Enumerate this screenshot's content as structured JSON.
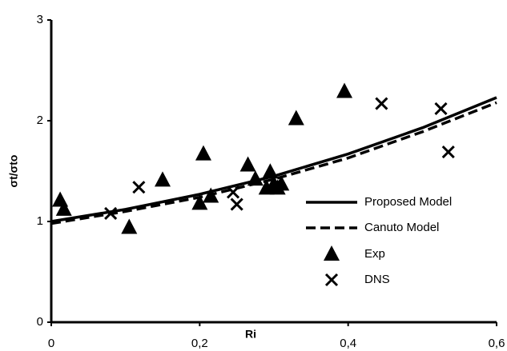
{
  "chart_data": {
    "type": "scatter",
    "x_label": "Ri",
    "y_label": "σt/σto",
    "xlim": [
      0,
      0.6
    ],
    "ylim": [
      0,
      3
    ],
    "xticks": [
      0,
      {
        "value": 0.2,
        "label": "0,2"
      },
      {
        "value": 0.4,
        "label": "0,4"
      },
      {
        "value": 0.6,
        "label": "0,6"
      }
    ],
    "yticks": [
      0,
      1,
      2,
      3
    ],
    "series": [
      {
        "name": "Proposed Model",
        "kind": "line",
        "style": "solid",
        "color": "#000000",
        "x": [
          0,
          0.1,
          0.2,
          0.3,
          0.4,
          0.5,
          0.6
        ],
        "values": [
          1.0,
          1.12,
          1.27,
          1.45,
          1.67,
          1.93,
          2.23
        ]
      },
      {
        "name": "Canuto Model",
        "kind": "line",
        "style": "dashed",
        "color": "#000000",
        "x": [
          0,
          0.1,
          0.2,
          0.3,
          0.4,
          0.5,
          0.6
        ],
        "values": [
          0.98,
          1.1,
          1.24,
          1.42,
          1.63,
          1.89,
          2.18
        ]
      },
      {
        "name": "Exp",
        "kind": "points",
        "marker": "triangle",
        "color": "#000000",
        "x": [
          0.012,
          0.017,
          0.105,
          0.15,
          0.2,
          0.205,
          0.215,
          0.265,
          0.275,
          0.29,
          0.295,
          0.3,
          0.305,
          0.31,
          0.33,
          0.395
        ],
        "values": [
          1.21,
          1.12,
          0.94,
          1.41,
          1.18,
          1.67,
          1.25,
          1.56,
          1.42,
          1.33,
          1.49,
          1.37,
          1.33,
          1.37,
          2.02,
          2.29
        ]
      },
      {
        "name": "DNS",
        "kind": "points",
        "marker": "x",
        "color": "#000000",
        "x": [
          0.08,
          0.118,
          0.245,
          0.25,
          0.445,
          0.525,
          0.535
        ],
        "values": [
          1.08,
          1.34,
          1.29,
          1.17,
          2.17,
          2.12,
          1.69
        ]
      }
    ]
  }
}
